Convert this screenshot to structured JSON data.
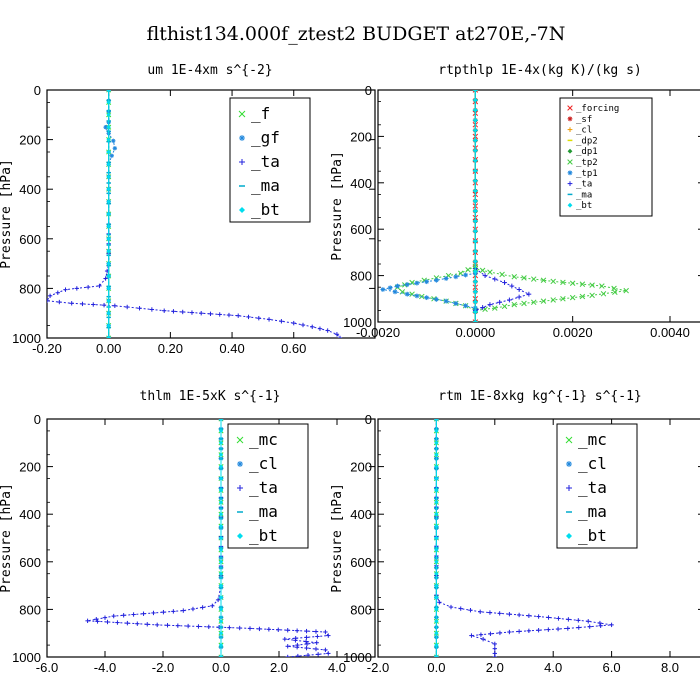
{
  "figure": {
    "title": "flthist134.000f_ztest2  BUDGET at270E,-7N"
  },
  "chart_data": [
    {
      "type": "line",
      "title": "um  1E-4xm s^{-2}",
      "ylabel": "Pressure [hPa]",
      "xlim": [
        -0.2,
        0.75
      ],
      "ylim": [
        1000,
        0
      ],
      "xticks": [
        "-0.20",
        "0.00",
        "0.20",
        "0.40",
        "0.60"
      ],
      "xtick_values": [
        -0.2,
        0.0,
        0.2,
        0.4,
        0.6
      ],
      "yticks": [
        "0",
        "200",
        "400",
        "600",
        "800",
        "1000"
      ],
      "ytick_values": [
        0,
        200,
        400,
        600,
        800,
        1000
      ],
      "legend_size": "large",
      "series": [
        {
          "name": "_f",
          "color": "#33dd33",
          "marker": "x",
          "points": [
            [
              0,
              0
            ],
            [
              0,
              100
            ],
            [
              0,
              200
            ],
            [
              0,
              300
            ],
            [
              0,
              400
            ],
            [
              0,
              500
            ],
            [
              0,
              600
            ],
            [
              0,
              700
            ],
            [
              0,
              800
            ],
            [
              0,
              900
            ],
            [
              0,
              1000
            ]
          ]
        },
        {
          "name": "_gf",
          "color": "#2288dd",
          "marker": "asterisk",
          "points": [
            [
              0,
              0
            ],
            [
              0,
              130
            ],
            [
              -0.01,
              150
            ],
            [
              0,
              175
            ],
            [
              0.015,
              205
            ],
            [
              0.02,
              235
            ],
            [
              0.01,
              265
            ],
            [
              0,
              300
            ],
            [
              0,
              400
            ],
            [
              0,
              500
            ],
            [
              0,
              600
            ],
            [
              0,
              700
            ],
            [
              0,
              800
            ],
            [
              0,
              900
            ],
            [
              0,
              1000
            ]
          ]
        },
        {
          "name": "_ta",
          "color": "#2222dd",
          "marker": "plus",
          "points": [
            [
              0,
              0
            ],
            [
              0,
              500
            ],
            [
              0,
              700
            ],
            [
              -0.01,
              760
            ],
            [
              -0.03,
              790
            ],
            [
              -0.14,
              805
            ],
            [
              -0.19,
              830
            ],
            [
              -0.2,
              850
            ],
            [
              -0.12,
              860
            ],
            [
              0.02,
              870
            ],
            [
              0.1,
              880
            ],
            [
              0.18,
              890
            ],
            [
              0.3,
              900
            ],
            [
              0.42,
              910
            ],
            [
              0.52,
              925
            ],
            [
              0.6,
              940
            ],
            [
              0.66,
              955
            ],
            [
              0.71,
              970
            ],
            [
              0.74,
              985
            ],
            [
              0.75,
              1000
            ]
          ]
        },
        {
          "name": "_ma",
          "color": "#00aacc",
          "marker": "dash",
          "points": [
            [
              0,
              0
            ],
            [
              0,
              500
            ],
            [
              0,
              1000
            ]
          ]
        },
        {
          "name": "_bt",
          "color": "#00ddee",
          "marker": "diamond",
          "points": [
            [
              0,
              0
            ],
            [
              0,
              100
            ],
            [
              0,
              200
            ],
            [
              0,
              300
            ],
            [
              0,
              400
            ],
            [
              0,
              500
            ],
            [
              0,
              600
            ],
            [
              0,
              700
            ],
            [
              0,
              800
            ],
            [
              0,
              900
            ],
            [
              0,
              1000
            ]
          ]
        }
      ]
    },
    {
      "type": "line",
      "title": "rtpthlp  1E-4x(kg K)/(kg s)",
      "ylabel": "Pressure [hPa]",
      "xlim": [
        -0.002,
        0.004
      ],
      "ylim": [
        1000,
        0
      ],
      "xticks": [
        "-0.0020",
        "0.0000",
        "0.0020",
        "0.0040"
      ],
      "xtick_values": [
        -0.002,
        0.0,
        0.002,
        0.004
      ],
      "yticks": [
        "0",
        "200",
        "400",
        "600",
        "800",
        "1000"
      ],
      "ytick_values": [
        0,
        200,
        400,
        600,
        800,
        1000
      ],
      "legend_size": "small",
      "series": [
        {
          "name": "_forcing",
          "color": "#ee2222",
          "marker": "x",
          "points": [
            [
              0,
              0
            ],
            [
              0,
              100
            ],
            [
              0,
              200
            ],
            [
              0,
              300
            ],
            [
              0,
              400
            ],
            [
              0,
              500
            ],
            [
              0,
              600
            ],
            [
              0,
              700
            ],
            [
              0,
              800
            ],
            [
              0,
              900
            ],
            [
              0,
              1000
            ]
          ]
        },
        {
          "name": "_sf",
          "color": "#cc2222",
          "marker": "asterisk",
          "points": [
            [
              0,
              0
            ],
            [
              0,
              1000
            ]
          ]
        },
        {
          "name": "_cl",
          "color": "#ee9900",
          "marker": "plus",
          "points": [
            [
              0,
              0
            ],
            [
              0,
              1000
            ]
          ]
        },
        {
          "name": "_dp2",
          "color": "#dddd00",
          "marker": "dash",
          "points": [
            [
              0,
              0
            ],
            [
              0,
              1000
            ]
          ]
        },
        {
          "name": "_dp1",
          "color": "#229933",
          "marker": "diamond",
          "points": [
            [
              0,
              0
            ],
            [
              0,
              1000
            ]
          ]
        },
        {
          "name": "_tp2",
          "color": "#44cc44",
          "marker": "x",
          "points": [
            [
              0,
              760
            ],
            [
              -0.0003,
              790
            ],
            [
              -0.0008,
              810
            ],
            [
              -0.0013,
              830
            ],
            [
              -0.0016,
              850
            ],
            [
              -0.0015,
              870
            ],
            [
              -0.0011,
              890
            ],
            [
              -0.0006,
              910
            ],
            [
              -0.0002,
              930
            ],
            [
              0,
              950
            ],
            [
              0.0004,
              940
            ],
            [
              0.0008,
              925
            ],
            [
              0.0016,
              905
            ],
            [
              0.0024,
              885
            ],
            [
              0.0031,
              865
            ],
            [
              0.0026,
              845
            ],
            [
              0.0016,
              825
            ],
            [
              0.0008,
              805
            ],
            [
              0.0003,
              785
            ],
            [
              0,
              770
            ]
          ]
        },
        {
          "name": "_tp1",
          "color": "#2288dd",
          "marker": "asterisk",
          "points": [
            [
              0,
              790
            ],
            [
              -0.0008,
              820
            ],
            [
              -0.0016,
              845
            ],
            [
              -0.0019,
              860
            ],
            [
              -0.0014,
              880
            ],
            [
              -0.0006,
              910
            ],
            [
              0,
              940
            ]
          ]
        },
        {
          "name": "_ta",
          "color": "#2222dd",
          "marker": "plus",
          "points": [
            [
              0,
              770
            ],
            [
              0.0002,
              800
            ],
            [
              0.0006,
              830
            ],
            [
              0.0009,
              860
            ],
            [
              0.0011,
              880
            ],
            [
              0.0007,
              905
            ],
            [
              0.0003,
              925
            ],
            [
              0,
              950
            ]
          ]
        },
        {
          "name": "_ma",
          "color": "#00aacc",
          "marker": "dash",
          "points": [
            [
              0,
              0
            ],
            [
              0,
              1000
            ]
          ]
        },
        {
          "name": "_bt",
          "color": "#00ddee",
          "marker": "diamond",
          "points": [
            [
              0,
              0
            ],
            [
              0,
              1000
            ]
          ]
        }
      ]
    },
    {
      "type": "line",
      "title": "thlm  1E-5xK s^{-1}",
      "ylabel": "Pressure [hPa]",
      "xlim": [
        -6.0,
        4.0
      ],
      "ylim": [
        1000,
        0
      ],
      "xticks": [
        "-6.0",
        "-4.0",
        "-2.0",
        "0.0",
        "2.0",
        "4.0"
      ],
      "xtick_values": [
        -6,
        -4,
        -2,
        0,
        2,
        4
      ],
      "yticks": [
        "0",
        "200",
        "400",
        "600",
        "800",
        "1000"
      ],
      "ytick_values": [
        0,
        200,
        400,
        600,
        800,
        1000
      ],
      "legend_size": "large",
      "series": [
        {
          "name": "_mc",
          "color": "#33dd33",
          "marker": "x",
          "points": [
            [
              0,
              0
            ],
            [
              0,
              100
            ],
            [
              0,
              200
            ],
            [
              0,
              300
            ],
            [
              0,
              400
            ],
            [
              0,
              500
            ],
            [
              0,
              600
            ],
            [
              0,
              700
            ],
            [
              0,
              800
            ],
            [
              0,
              900
            ],
            [
              0,
              1000
            ]
          ]
        },
        {
          "name": "_cl",
          "color": "#2288dd",
          "marker": "asterisk",
          "points": [
            [
              0,
              0
            ],
            [
              0,
              1000
            ]
          ]
        },
        {
          "name": "_ta",
          "color": "#2222dd",
          "marker": "plus",
          "points": [
            [
              0,
              0
            ],
            [
              0,
              700
            ],
            [
              -0.1,
              760
            ],
            [
              -0.3,
              785
            ],
            [
              -1.3,
              805
            ],
            [
              -3.7,
              828
            ],
            [
              -4.6,
              848
            ],
            [
              -2.2,
              865
            ],
            [
              1.0,
              880
            ],
            [
              3.6,
              895
            ],
            [
              3.7,
              910
            ],
            [
              2.2,
              925
            ],
            [
              3.3,
              940
            ],
            [
              2.3,
              955
            ],
            [
              3.6,
              970
            ],
            [
              3.7,
              985
            ],
            [
              2.3,
              1000
            ]
          ]
        },
        {
          "name": "_ma",
          "color": "#00aacc",
          "marker": "dash",
          "points": [
            [
              0,
              0
            ],
            [
              0,
              1000
            ]
          ]
        },
        {
          "name": "_bt",
          "color": "#00ddee",
          "marker": "diamond",
          "points": [
            [
              0,
              0
            ],
            [
              0,
              100
            ],
            [
              0,
              200
            ],
            [
              0,
              300
            ],
            [
              0,
              400
            ],
            [
              0,
              500
            ],
            [
              0,
              600
            ],
            [
              0,
              700
            ],
            [
              0,
              800
            ],
            [
              0,
              900
            ],
            [
              0,
              1000
            ]
          ]
        }
      ]
    },
    {
      "type": "line",
      "title": "rtm  1E-8xkg kg^{-1} s^{-1}",
      "ylabel": "Pressure [hPa]",
      "xlim": [
        -2.0,
        8.0
      ],
      "ylim": [
        1000,
        0
      ],
      "xticks": [
        "-2.0",
        "0.0",
        "2.0",
        "4.0",
        "6.0",
        "8.0"
      ],
      "xtick_values": [
        -2,
        0,
        2,
        4,
        6,
        8
      ],
      "yticks": [
        "0",
        "200",
        "400",
        "600",
        "800",
        "1000"
      ],
      "ytick_values": [
        0,
        200,
        400,
        600,
        800,
        1000
      ],
      "legend_size": "large",
      "series": [
        {
          "name": "_mc",
          "color": "#33dd33",
          "marker": "x",
          "points": [
            [
              0,
              0
            ],
            [
              0,
              100
            ],
            [
              0,
              200
            ],
            [
              0,
              300
            ],
            [
              0,
              400
            ],
            [
              0,
              500
            ],
            [
              0,
              600
            ],
            [
              0,
              700
            ],
            [
              0,
              800
            ],
            [
              0,
              900
            ],
            [
              0,
              1000
            ]
          ]
        },
        {
          "name": "_cl",
          "color": "#2288dd",
          "marker": "asterisk",
          "points": [
            [
              0,
              0
            ],
            [
              0,
              1000
            ]
          ]
        },
        {
          "name": "_ta",
          "color": "#2222dd",
          "marker": "plus",
          "points": [
            [
              0,
              0
            ],
            [
              0,
              740
            ],
            [
              0.1,
              770
            ],
            [
              0.5,
              790
            ],
            [
              1.5,
              810
            ],
            [
              3.5,
              830
            ],
            [
              5.2,
              850
            ],
            [
              6.0,
              865
            ],
            [
              4.5,
              880
            ],
            [
              2.5,
              895
            ],
            [
              1.2,
              910
            ],
            [
              1.6,
              925
            ],
            [
              2.0,
              945
            ],
            [
              2.0,
              965
            ],
            [
              2.0,
              985
            ],
            [
              2.0,
              1000
            ]
          ]
        },
        {
          "name": "_ma",
          "color": "#00aacc",
          "marker": "dash",
          "points": [
            [
              0,
              0
            ],
            [
              0,
              1000
            ]
          ]
        },
        {
          "name": "_bt",
          "color": "#00ddee",
          "marker": "diamond",
          "points": [
            [
              0,
              0
            ],
            [
              0,
              100
            ],
            [
              0,
              200
            ],
            [
              0,
              300
            ],
            [
              0,
              400
            ],
            [
              0,
              500
            ],
            [
              0,
              600
            ],
            [
              0,
              700
            ],
            [
              0,
              800
            ],
            [
              0,
              900
            ],
            [
              0,
              1000
            ]
          ]
        }
      ]
    }
  ]
}
